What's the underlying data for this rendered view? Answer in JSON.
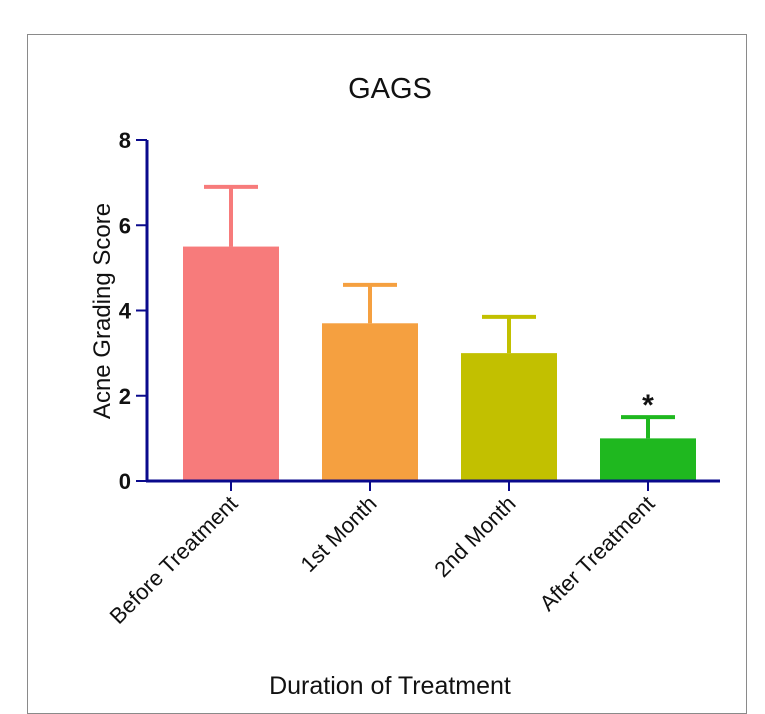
{
  "chart_data": {
    "type": "bar",
    "title": "GAGS",
    "xlabel": "Duration of Treatment",
    "ylabel": "Acne Grading Score",
    "categories": [
      "Before Treatment",
      "1st Month",
      "2nd Month",
      "After Treatment"
    ],
    "values": [
      5.5,
      3.7,
      3.0,
      1.0
    ],
    "error_upper": [
      6.9,
      4.6,
      3.85,
      1.5
    ],
    "colors": [
      "#f77b7b",
      "#f5a040",
      "#c2c000",
      "#1fb81f"
    ],
    "ylim": [
      0,
      8
    ],
    "yticks": [
      "0",
      "2",
      "4",
      "6",
      "8"
    ],
    "annotations": [
      {
        "category": "After Treatment",
        "text": "*"
      }
    ],
    "axis_color": "#0a0a8c",
    "grid": false,
    "legend": "none"
  }
}
